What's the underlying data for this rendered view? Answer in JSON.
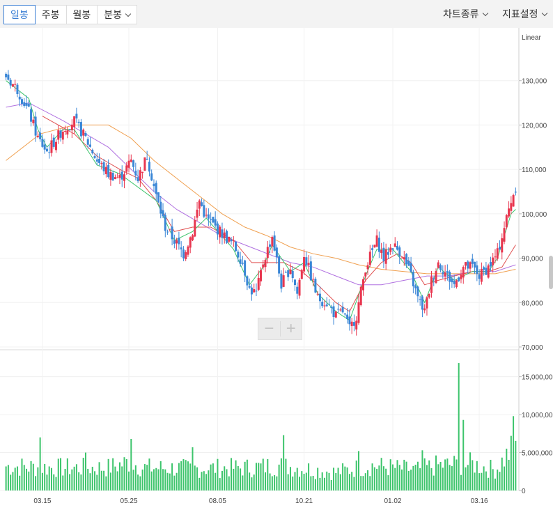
{
  "toolbar": {
    "tabs": [
      {
        "label": "일봉",
        "active": true
      },
      {
        "label": "주봉"
      },
      {
        "label": "월봉"
      },
      {
        "label": "분봉"
      }
    ],
    "chart_type_menu": "차트종류",
    "indicator_menu": "지표설정"
  },
  "colors": {
    "up": "#e8364f",
    "down": "#3a86d6",
    "volume": "#3cc46b",
    "ma5": "#3cc46b",
    "ma20": "#e05050",
    "ma60": "#b070e0",
    "ma120": "#f0a050",
    "active_tab": "#3b7fd4"
  },
  "chart_data": {
    "type": "candlestick",
    "scale_label": "Linear",
    "price_axis": {
      "min": 70000,
      "max": 140000,
      "ticks": [
        "130,000",
        "120,000",
        "110,000",
        "100,000",
        "90,000",
        "80,000",
        "70,000"
      ]
    },
    "volume_axis": {
      "min": 0,
      "max": 18000000,
      "ticks": [
        "15,000,000",
        "10,000,000",
        "5,000,000",
        "0"
      ]
    },
    "x_ticks": [
      "03.15",
      "05.25",
      "08.05",
      "10.21",
      "01.02",
      "03.16"
    ],
    "price_path": [
      [
        0,
        131000
      ],
      [
        5,
        128000
      ],
      [
        10,
        123000
      ],
      [
        14,
        117000
      ],
      [
        18,
        114000
      ],
      [
        25,
        119000
      ],
      [
        30,
        121000
      ],
      [
        35,
        117000
      ],
      [
        40,
        112000
      ],
      [
        45,
        109000
      ],
      [
        50,
        108000
      ],
      [
        55,
        112000
      ],
      [
        58,
        108000
      ],
      [
        62,
        113000
      ],
      [
        66,
        104000
      ],
      [
        70,
        97000
      ],
      [
        74,
        94000
      ],
      [
        78,
        91000
      ],
      [
        82,
        96000
      ],
      [
        85,
        103000
      ],
      [
        88,
        99000
      ],
      [
        92,
        97000
      ],
      [
        96,
        95000
      ],
      [
        100,
        93000
      ],
      [
        104,
        89000
      ],
      [
        107,
        83000
      ],
      [
        110,
        82000
      ],
      [
        113,
        89000
      ],
      [
        117,
        95000
      ],
      [
        121,
        84000
      ],
      [
        125,
        88000
      ],
      [
        128,
        82000
      ],
      [
        131,
        91000
      ],
      [
        134,
        86000
      ],
      [
        137,
        81000
      ],
      [
        141,
        80000
      ],
      [
        145,
        77000
      ],
      [
        148,
        78000
      ],
      [
        151,
        74000
      ],
      [
        154,
        77000
      ],
      [
        158,
        88000
      ],
      [
        163,
        94000
      ],
      [
        166,
        90000
      ],
      [
        170,
        93000
      ],
      [
        174,
        91000
      ],
      [
        178,
        86000
      ],
      [
        181,
        81000
      ],
      [
        184,
        78000
      ],
      [
        187,
        85000
      ],
      [
        190,
        89000
      ],
      [
        194,
        86000
      ],
      [
        197,
        84000
      ],
      [
        201,
        88000
      ],
      [
        205,
        88000
      ],
      [
        208,
        86000
      ],
      [
        212,
        88000
      ],
      [
        216,
        91000
      ],
      [
        219,
        97000
      ],
      [
        222,
        103000
      ],
      [
        224,
        106000
      ]
    ],
    "volume_path": [
      [
        0,
        3200000
      ],
      [
        20,
        3000000
      ],
      [
        45,
        3000000
      ],
      [
        55,
        3800000
      ],
      [
        60,
        3000000
      ],
      [
        80,
        2900000
      ],
      [
        107,
        3000000
      ],
      [
        120,
        3300000
      ],
      [
        145,
        2400000
      ],
      [
        160,
        3300000
      ],
      [
        180,
        2700000
      ],
      [
        190,
        3300000
      ],
      [
        205,
        3500000
      ],
      [
        215,
        2700000
      ],
      [
        224,
        6000000
      ]
    ],
    "volume_spikes": [
      [
        15,
        7000000
      ],
      [
        35,
        5000000
      ],
      [
        55,
        6800000
      ],
      [
        82,
        5700000
      ],
      [
        122,
        7300000
      ],
      [
        155,
        5200000
      ],
      [
        183,
        5300000
      ],
      [
        199,
        16800000
      ],
      [
        201,
        9300000
      ],
      [
        223,
        9800000
      ]
    ],
    "ma_curves": {
      "ma5": [
        [
          0,
          130000
        ],
        [
          10,
          126000
        ],
        [
          14,
          119000
        ],
        [
          18,
          115000
        ],
        [
          25,
          119000
        ],
        [
          30,
          119000
        ],
        [
          40,
          111000
        ],
        [
          50,
          109000
        ],
        [
          66,
          103000
        ],
        [
          74,
          94000
        ],
        [
          82,
          96000
        ],
        [
          88,
          99000
        ],
        [
          100,
          92000
        ],
        [
          107,
          84000
        ],
        [
          113,
          88000
        ],
        [
          117,
          93000
        ],
        [
          125,
          87000
        ],
        [
          131,
          89000
        ],
        [
          137,
          82000
        ],
        [
          145,
          78000
        ],
        [
          151,
          76000
        ],
        [
          158,
          86000
        ],
        [
          163,
          92000
        ],
        [
          170,
          92000
        ],
        [
          178,
          87000
        ],
        [
          184,
          80000
        ],
        [
          190,
          88000
        ],
        [
          197,
          85000
        ],
        [
          205,
          87000
        ],
        [
          212,
          87000
        ],
        [
          216,
          90000
        ],
        [
          222,
          100000
        ],
        [
          224,
          101000
        ]
      ],
      "ma20": [
        [
          16,
          122000
        ],
        [
          30,
          118000
        ],
        [
          40,
          113000
        ],
        [
          50,
          110000
        ],
        [
          58,
          108000
        ],
        [
          66,
          103000
        ],
        [
          74,
          96000
        ],
        [
          82,
          97000
        ],
        [
          90,
          97000
        ],
        [
          100,
          94000
        ],
        [
          108,
          89000
        ],
        [
          115,
          89000
        ],
        [
          122,
          89000
        ],
        [
          130,
          87000
        ],
        [
          137,
          84000
        ],
        [
          145,
          80000
        ],
        [
          151,
          78000
        ],
        [
          158,
          85000
        ],
        [
          165,
          89000
        ],
        [
          172,
          91000
        ],
        [
          178,
          89000
        ],
        [
          184,
          84000
        ],
        [
          190,
          85000
        ],
        [
          197,
          86000
        ],
        [
          205,
          87000
        ],
        [
          212,
          87000
        ],
        [
          218,
          88000
        ],
        [
          224,
          93000
        ]
      ],
      "ma60": [
        [
          0,
          124000
        ],
        [
          10,
          125000
        ],
        [
          25,
          121000
        ],
        [
          35,
          118000
        ],
        [
          45,
          115000
        ],
        [
          55,
          110000
        ],
        [
          65,
          105000
        ],
        [
          75,
          101000
        ],
        [
          85,
          98000
        ],
        [
          95,
          95000
        ],
        [
          105,
          93000
        ],
        [
          115,
          91000
        ],
        [
          125,
          89000
        ],
        [
          135,
          88000
        ],
        [
          145,
          86000
        ],
        [
          155,
          84000
        ],
        [
          165,
          84000
        ],
        [
          175,
          85000
        ],
        [
          185,
          86000
        ],
        [
          195,
          86000
        ],
        [
          205,
          87000
        ],
        [
          215,
          87000
        ],
        [
          224,
          88500
        ]
      ],
      "ma120": [
        [
          0,
          112000
        ],
        [
          15,
          118000
        ],
        [
          30,
          120000
        ],
        [
          45,
          120000
        ],
        [
          55,
          117000
        ],
        [
          65,
          112000
        ],
        [
          75,
          108000
        ],
        [
          85,
          104000
        ],
        [
          95,
          100000
        ],
        [
          105,
          97000
        ],
        [
          115,
          95000
        ],
        [
          125,
          92500
        ],
        [
          135,
          91000
        ],
        [
          145,
          90000
        ],
        [
          155,
          88500
        ],
        [
          165,
          87500
        ],
        [
          175,
          87000
        ],
        [
          185,
          86500
        ],
        [
          195,
          86500
        ],
        [
          205,
          86500
        ],
        [
          215,
          86500
        ],
        [
          224,
          87500
        ]
      ]
    }
  }
}
